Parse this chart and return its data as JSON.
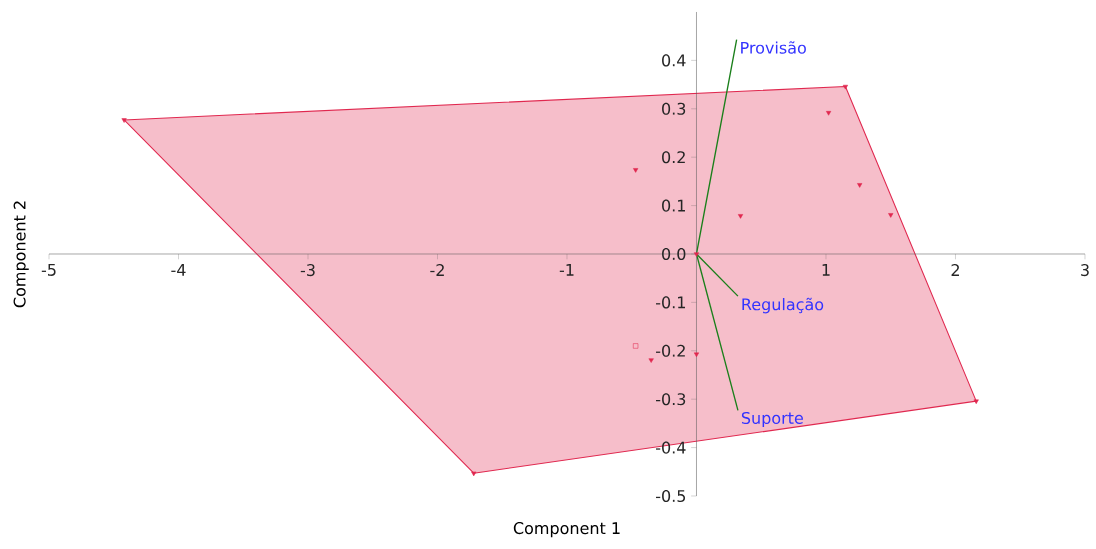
{
  "chart_data": {
    "type": "scatter",
    "xlabel": "Component 1",
    "ylabel": "Component 2",
    "xlim": [
      -5,
      3
    ],
    "ylim": [
      -0.5,
      0.5
    ],
    "xticks": [
      -5,
      -4,
      -3,
      -2,
      -1,
      1,
      2,
      3
    ],
    "yticks": [
      -0.5,
      -0.4,
      -0.3,
      -0.2,
      -0.1,
      {
        "value": 0,
        "label": "0.0"
      },
      0.1,
      0.2,
      0.3,
      0.4
    ],
    "series": [
      {
        "type": "area",
        "color": "#e0284f",
        "x": [
          -4.42,
          1.15,
          2.16,
          -1.72
        ],
        "values": [
          0.277,
          0.346,
          -0.304,
          -0.453
        ]
      },
      {
        "type": "scatter",
        "marker": "triangle",
        "color": "#e0284f",
        "x": [
          -4.42,
          1.15,
          2.16,
          -1.72,
          -0.47,
          1.02,
          1.26,
          1.5,
          0.34,
          -0.35,
          0.0,
          0.0
        ],
        "values": [
          0.277,
          0.346,
          -0.304,
          -0.453,
          0.174,
          0.292,
          0.143,
          0.081,
          0.079,
          -0.219,
          -0.207,
          0.0
        ]
      },
      {
        "type": "scatter",
        "marker": "square",
        "color": "#e0284f",
        "x": [
          -0.47
        ],
        "values": [
          -0.19
        ]
      },
      {
        "type": "line",
        "name": "Provisão",
        "color": "#1a7f1a",
        "x": [
          0,
          0.31
        ],
        "values": [
          0,
          0.443
        ]
      },
      {
        "type": "line",
        "name": "Regulação",
        "color": "#1a7f1a",
        "x": [
          0,
          0.32
        ],
        "values": [
          0,
          -0.087
        ]
      },
      {
        "type": "line",
        "name": "Suporte",
        "color": "#1a7f1a",
        "x": [
          0,
          0.32
        ],
        "values": [
          0,
          -0.323
        ]
      }
    ]
  }
}
